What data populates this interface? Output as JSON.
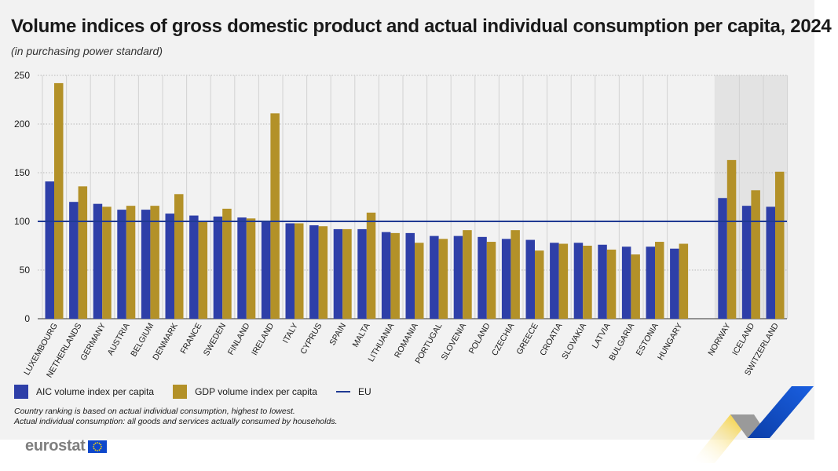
{
  "header": {
    "title": "Volume indices of gross domestic product and actual individual consumption per capita, 2024",
    "subtitle": "(in purchasing power standard)"
  },
  "colors": {
    "aic": "#2e3fa8",
    "gdp": "#b39128",
    "eu_line": "#1f3a93",
    "shade": "#e3e3e3"
  },
  "legend": {
    "aic_label": "AIC volume index per capita",
    "gdp_label": "GDP volume index per capita",
    "eu_label": "EU"
  },
  "notes": {
    "line1": "Country ranking is based on actual individual consumption, highest to lowest.",
    "line2": "Actual individual consumption: all goods and services actually consumed by households."
  },
  "logo": {
    "text": "eurostat"
  },
  "chart_data": {
    "type": "bar",
    "title": "Volume indices of gross domestic product and actual individual consumption per capita, 2024",
    "subtitle": "(in purchasing power standard)",
    "ylim": [
      0,
      250
    ],
    "yticks": [
      0,
      50,
      100,
      150,
      200,
      250
    ],
    "grid": true,
    "legend_position": "bottom-left",
    "reference_line": {
      "name": "EU",
      "value": 100
    },
    "categories": [
      "LUXEMBOURG",
      "NETHERLANDS",
      "GERMANY",
      "AUSTRIA",
      "BELGIUM",
      "DENMARK",
      "FRANCE",
      "SWEDEN",
      "FINLAND",
      "IRELAND",
      "ITALY",
      "CYPRUS",
      "SPAIN",
      "MALTA",
      "LITHUANIA",
      "ROMANIA",
      "PORTUGAL",
      "SLOVENIA",
      "POLAND",
      "CZECHIA",
      "GREECE",
      "CROATIA",
      "SLOVAKIA",
      "LATVIA",
      "BULGARIA",
      "ESTONIA",
      "HUNGARY",
      "NORWAY",
      "ICELAND",
      "SWITZERLAND"
    ],
    "non_eu": [
      "NORWAY",
      "ICELAND",
      "SWITZERLAND"
    ],
    "series": [
      {
        "name": "AIC volume index per capita",
        "values": [
          141,
          120,
          118,
          112,
          112,
          108,
          106,
          105,
          104,
          100,
          98,
          96,
          92,
          92,
          89,
          88,
          85,
          85,
          84,
          82,
          81,
          78,
          78,
          76,
          74,
          74,
          72,
          124,
          116,
          115
        ]
      },
      {
        "name": "GDP volume index per capita",
        "values": [
          242,
          136,
          115,
          116,
          116,
          128,
          100,
          113,
          103,
          211,
          98,
          95,
          92,
          109,
          88,
          78,
          82,
          91,
          79,
          91,
          70,
          77,
          75,
          71,
          66,
          79,
          77,
          163,
          132,
          151
        ]
      }
    ]
  }
}
